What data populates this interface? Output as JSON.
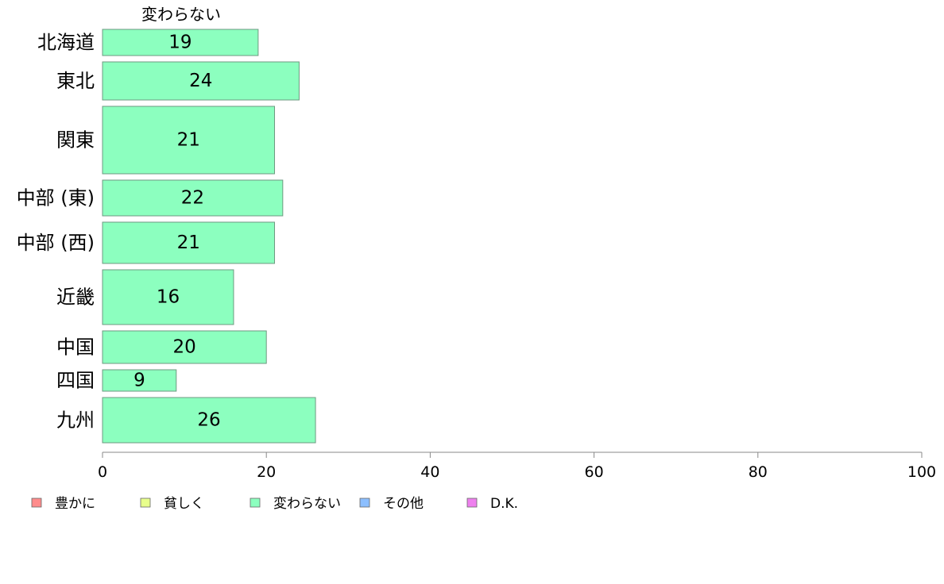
{
  "chart_data": {
    "type": "bar",
    "orientation": "horizontal",
    "series_title": "変わらない",
    "categories": [
      "北海道",
      "東北",
      "関東",
      "中部 (東)",
      "中部 (西)",
      "近畿",
      "中国",
      "四国",
      "九州"
    ],
    "values": [
      19,
      24,
      21,
      22,
      21,
      16,
      20,
      9,
      26
    ],
    "bar_color": "#8cffbf",
    "bar_stroke": "#6e9a80",
    "xlim": [
      0,
      100
    ],
    "xticks": [
      0,
      20,
      40,
      60,
      80,
      100
    ],
    "legend": {
      "placement": "bottom",
      "items": [
        {
          "label": "豊かに",
          "color": "#ff8c8c"
        },
        {
          "label": "貧しく",
          "color": "#e8ff8c"
        },
        {
          "label": "変わらない",
          "color": "#8cffbf"
        },
        {
          "label": "その他",
          "color": "#8cbfff"
        },
        {
          "label": "D.K.",
          "color": "#ee80ee"
        }
      ]
    }
  }
}
